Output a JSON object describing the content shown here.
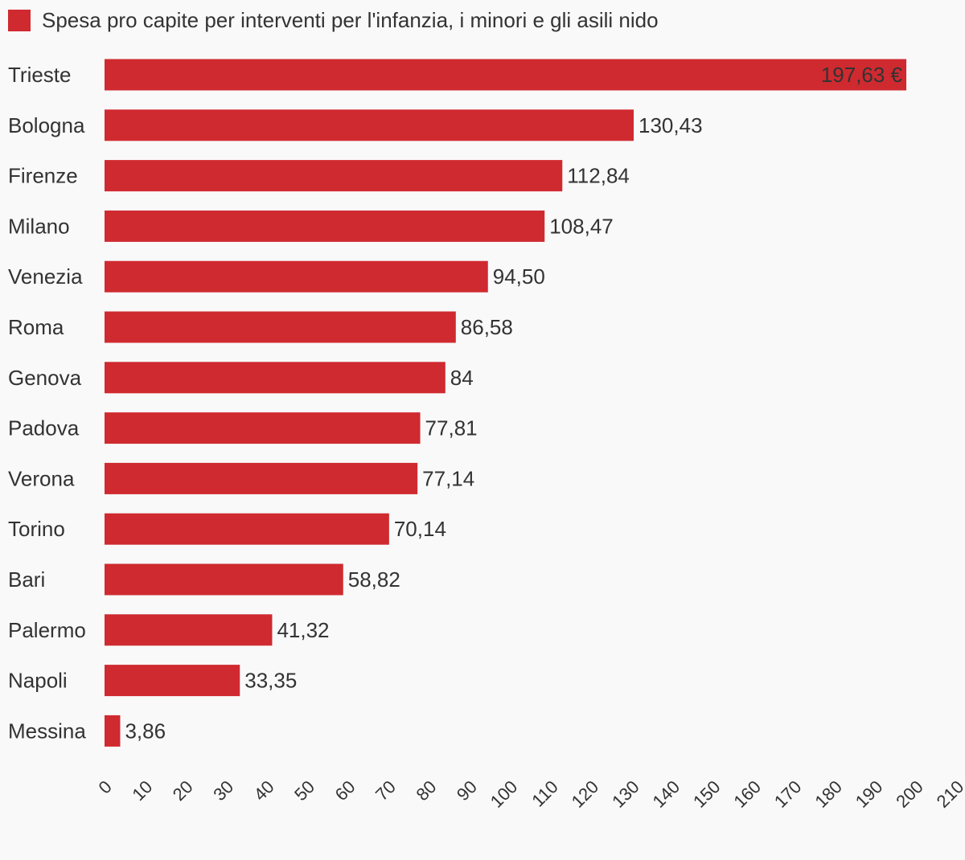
{
  "chart_data": {
    "type": "bar",
    "orientation": "horizontal",
    "title": "",
    "xlabel": "",
    "ylabel": "",
    "legend": {
      "position": "top-left",
      "entries": [
        "Spesa pro capite per interventi per l'infanzia, i minori e gli asili nido"
      ]
    },
    "series": [
      {
        "name": "Spesa pro capite per interventi per l'infanzia, i minori e gli asili nido",
        "color": "#cf2a30",
        "values": [
          197.63,
          130.43,
          112.84,
          108.47,
          94.5,
          86.58,
          84,
          77.81,
          77.14,
          70.14,
          58.82,
          41.32,
          33.35,
          3.86
        ],
        "labels": [
          "197,63 €",
          "130,43",
          "112,84",
          "108,47",
          "94,50",
          "86,58",
          "84",
          "77,81",
          "77,14",
          "70,14",
          "58,82",
          "41,32",
          "33,35",
          "3,86"
        ]
      }
    ],
    "categories": [
      "Trieste",
      "Bologna",
      "Firenze",
      "Milano",
      "Venezia",
      "Roma",
      "Genova",
      "Padova",
      "Verona",
      "Torino",
      "Bari",
      "Palermo",
      "Napoli",
      "Messina"
    ],
    "xlim": [
      0,
      210
    ],
    "xticks": [
      "0",
      "10",
      "20",
      "30",
      "40",
      "50",
      "60",
      "70",
      "80",
      "90",
      "100",
      "110",
      "120",
      "130",
      "140",
      "150",
      "160",
      "170",
      "180",
      "190",
      "200",
      "210"
    ],
    "grid": false
  }
}
